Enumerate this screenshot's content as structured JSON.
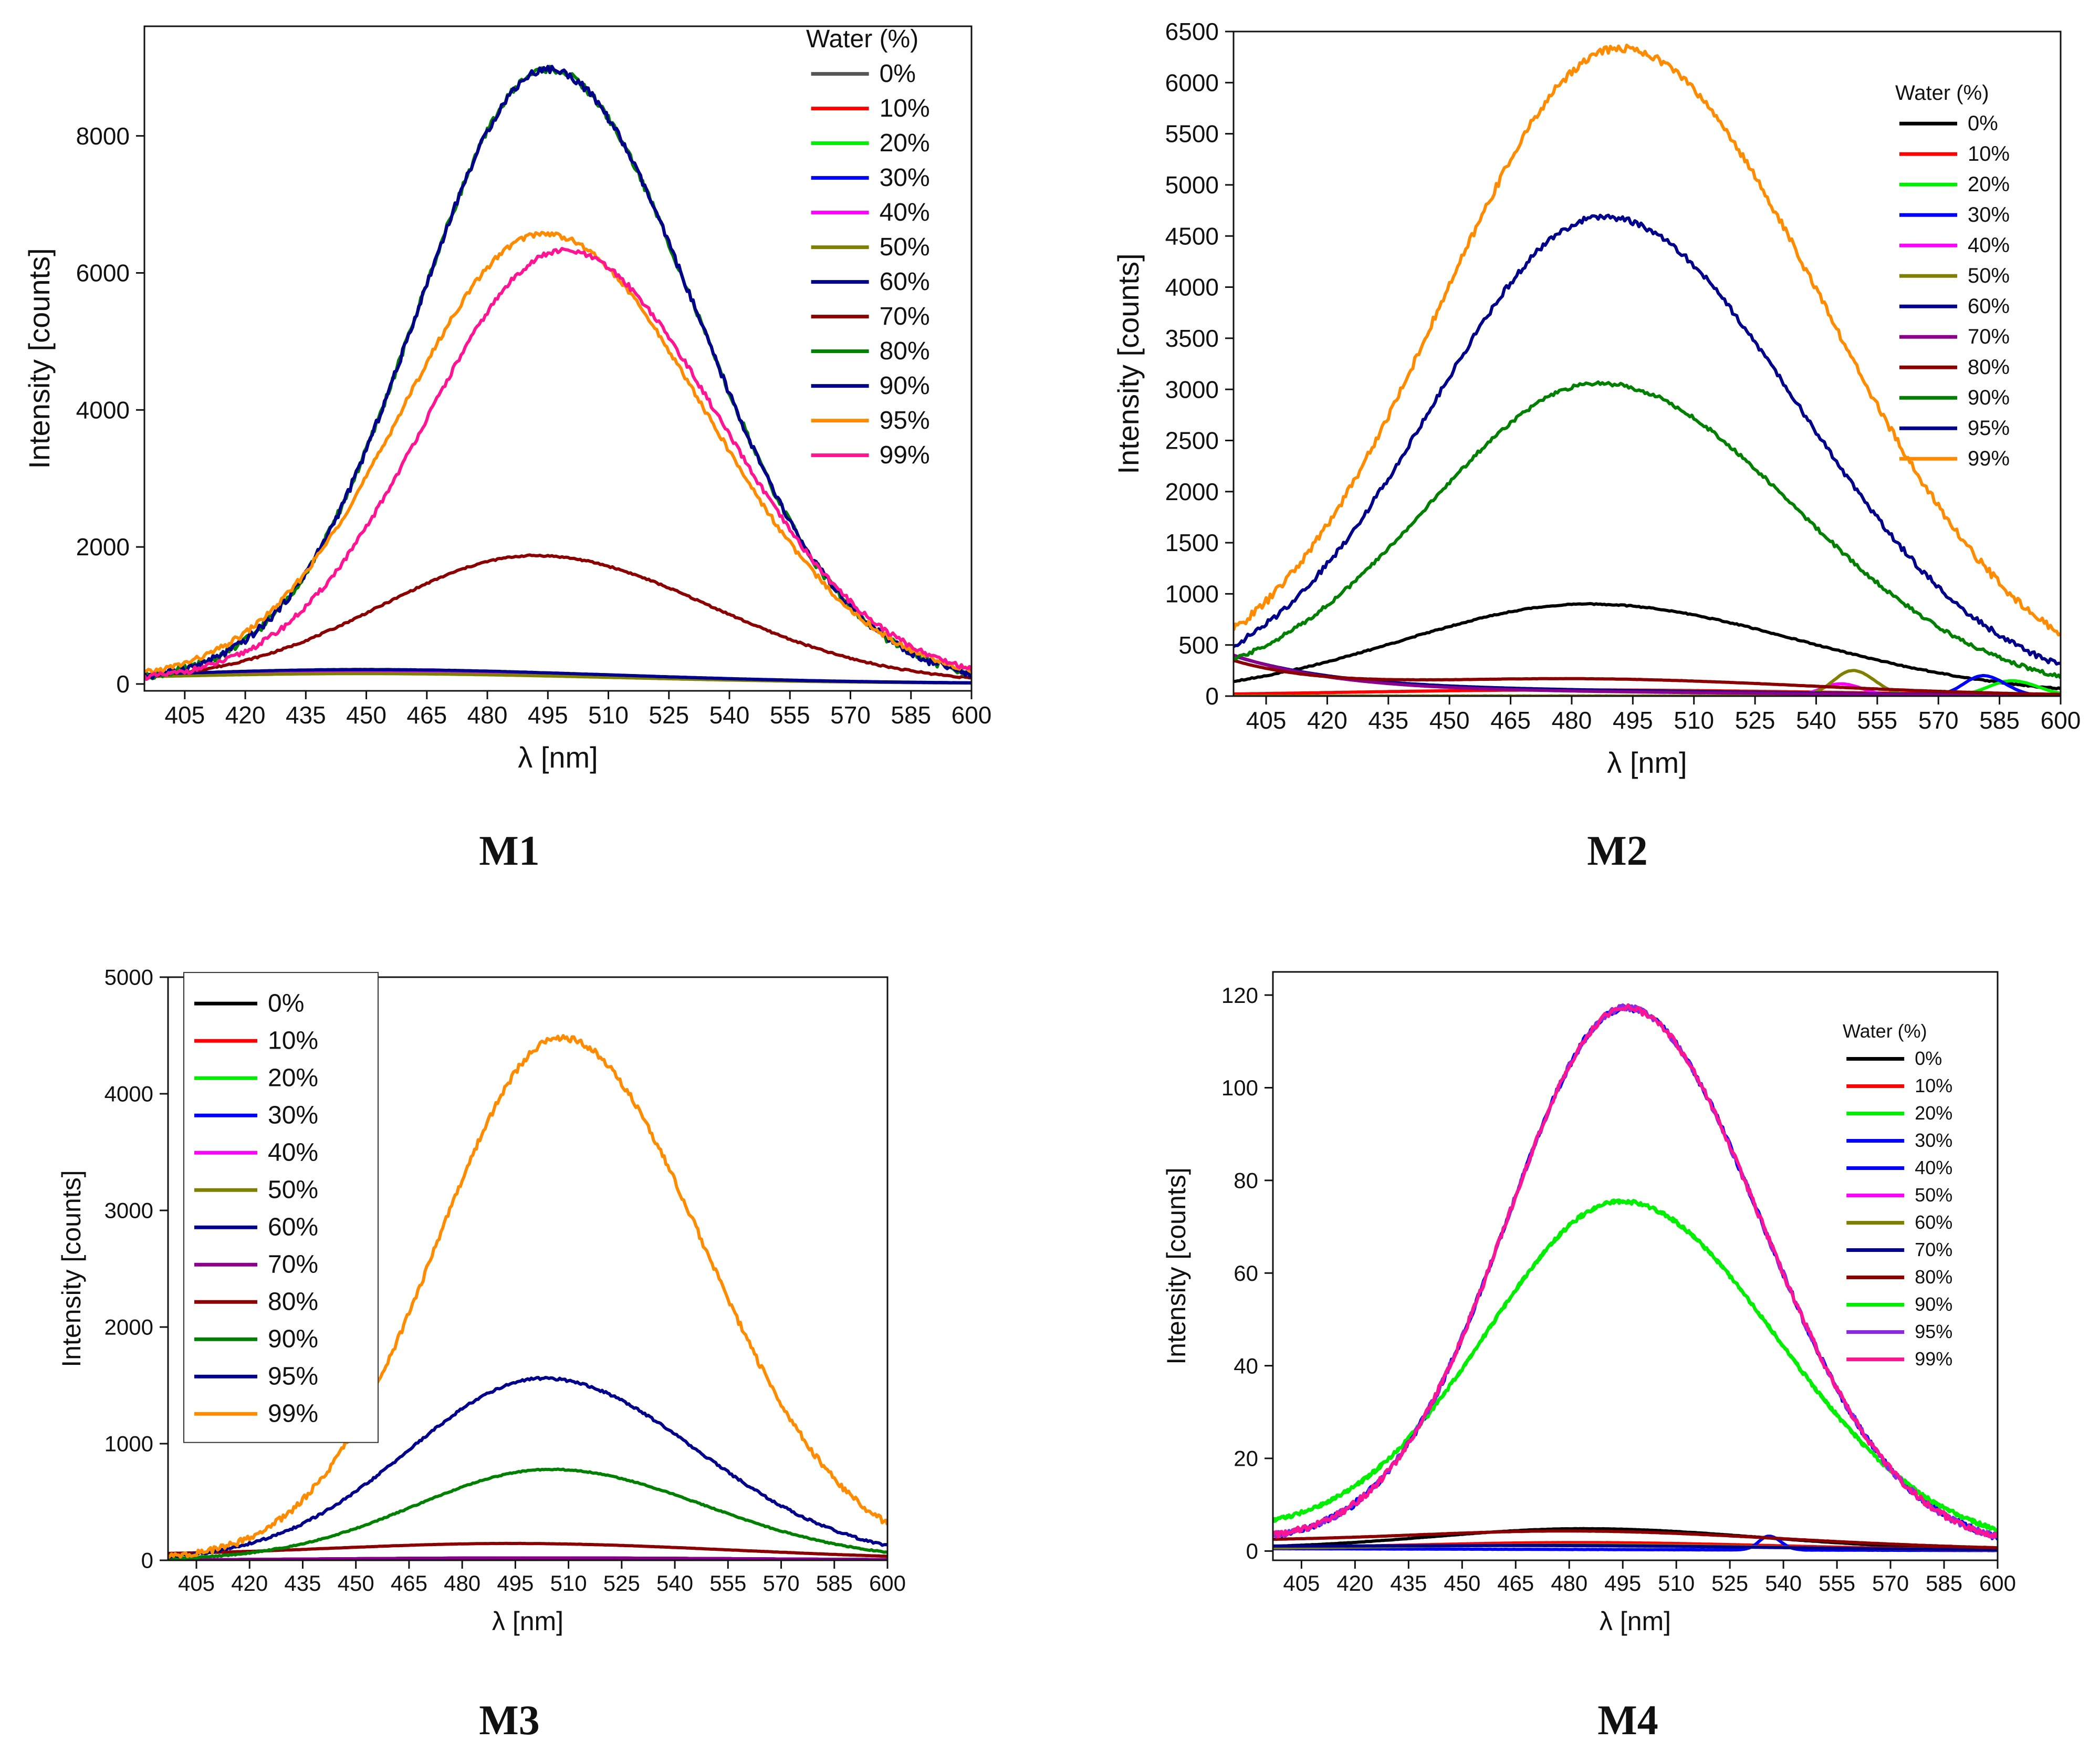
{
  "figure": {
    "captions": [
      "M1",
      "M2",
      "M3",
      "M4"
    ]
  },
  "chart_data": [
    {
      "id": "M1",
      "type": "line",
      "title": "",
      "caption": "M1",
      "xlabel": "λ [nm]",
      "ylabel": "Intensity [counts]",
      "xlim": [
        395,
        600
      ],
      "ylim": [
        -100,
        9600
      ],
      "xticks": [
        405,
        420,
        435,
        450,
        465,
        480,
        495,
        510,
        525,
        540,
        555,
        570,
        585,
        600
      ],
      "yticks": [
        0,
        2000,
        4000,
        6000,
        8000
      ],
      "legend": {
        "title": "Water (%)",
        "placement": "top-right",
        "size": "large"
      },
      "series": [
        {
          "name": "0%",
          "color": "#555555",
          "peak": [
            452,
            160,
            55
          ],
          "base": [
            40,
            0
          ]
        },
        {
          "name": "10%",
          "color": "#ff0000",
          "peak": [
            452,
            150,
            55
          ],
          "base": [
            40,
            0
          ]
        },
        {
          "name": "20%",
          "color": "#00ee00",
          "peak": [
            452,
            140,
            55
          ],
          "base": [
            40,
            0
          ]
        },
        {
          "name": "30%",
          "color": "#0000ff",
          "peak": [
            455,
            170,
            55
          ],
          "base": [
            40,
            0
          ]
        },
        {
          "name": "40%",
          "color": "#ff00ff",
          "peak": [
            452,
            130,
            55
          ],
          "base": [
            40,
            0
          ]
        },
        {
          "name": "50%",
          "color": "#808000",
          "peak": [
            452,
            120,
            55
          ],
          "base": [
            40,
            0
          ]
        },
        {
          "name": "60%",
          "color": "#00008b",
          "peak": [
            452,
            180,
            55
          ],
          "base": [
            40,
            0
          ]
        },
        {
          "name": "70%",
          "color": "#8b0000",
          "peak": [
            492,
            1850,
            40
          ],
          "base": [
            40,
            0
          ]
        },
        {
          "name": "80%",
          "color": "#008000",
          "peak": [
            495,
            8950,
            34
          ],
          "base": [
            40,
            0
          ]
        },
        {
          "name": "90%",
          "color": "#00008b",
          "peak": [
            495,
            8950,
            34
          ],
          "base": [
            40,
            0
          ]
        },
        {
          "name": "95%",
          "color": "#ff8c00",
          "peak": [
            494,
            6550,
            37
          ],
          "base": [
            40,
            0
          ]
        },
        {
          "name": "99%",
          "color": "#ff1493",
          "peak": [
            499,
            6300,
            36
          ],
          "base": [
            40,
            0
          ]
        }
      ]
    },
    {
      "id": "M2",
      "type": "line",
      "title": "",
      "caption": "M2",
      "xlabel": "λ [nm]",
      "ylabel": "Intensity [counts]",
      "xlim": [
        397,
        600
      ],
      "ylim": [
        0,
        6500
      ],
      "xticks": [
        405,
        420,
        435,
        450,
        465,
        480,
        495,
        510,
        525,
        540,
        555,
        570,
        585,
        600
      ],
      "yticks": [
        0,
        500,
        1000,
        1500,
        2000,
        2500,
        3000,
        3500,
        4000,
        4500,
        5000,
        5500,
        6000,
        6500
      ],
      "legend": {
        "title": "Water (%)",
        "placement": "top-right",
        "size": "small"
      },
      "series": [
        {
          "name": "0%",
          "color": "#000000",
          "peak": [
            484,
            900,
            48
          ],
          "base": [
            0,
            0
          ]
        },
        {
          "name": "10%",
          "color": "#ff0000",
          "peak": [
            480,
            60,
            60
          ],
          "base": [
            0,
            0
          ]
        },
        {
          "name": "20%",
          "color": "#00ee00",
          "peak": [
            588,
            150,
            6
          ],
          "base": [
            0,
            0
          ]
        },
        {
          "name": "30%",
          "color": "#0000ff",
          "peak": [
            581,
            200,
            5
          ],
          "base": [
            0,
            0
          ]
        },
        {
          "name": "40%",
          "color": "#ff00ff",
          "peak": [
            546,
            120,
            5
          ],
          "base": [
            0,
            0
          ]
        },
        {
          "name": "50%",
          "color": "#808000",
          "peak": [
            549,
            250,
            5
          ],
          "base": [
            0,
            0
          ]
        },
        {
          "name": "60%",
          "color": "#00008b",
          "peak": [
            480,
            40,
            60
          ],
          "base": [
            380,
            30
          ]
        },
        {
          "name": "70%",
          "color": "#8b008b",
          "peak": [
            480,
            30,
            60
          ],
          "base": [
            390,
            28
          ]
        },
        {
          "name": "80%",
          "color": "#8b0000",
          "peak": [
            485,
            160,
            50
          ],
          "base": [
            320,
            25
          ]
        },
        {
          "name": "90%",
          "color": "#008000",
          "peak": [
            487,
            3020,
            44
          ],
          "base": [
            60,
            0
          ]
        },
        {
          "name": "95%",
          "color": "#00008b",
          "peak": [
            488,
            4650,
            44
          ],
          "base": [
            60,
            0
          ]
        },
        {
          "name": "99%",
          "color": "#ff8c00",
          "peak": [
            492,
            6300,
            46
          ],
          "base": [
            60,
            0
          ]
        }
      ]
    },
    {
      "id": "M3",
      "type": "line",
      "title": "",
      "caption": "M3",
      "xlabel": "λ [nm]",
      "ylabel": "Intensity [counts]",
      "xlim": [
        397,
        600
      ],
      "ylim": [
        0,
        5000
      ],
      "xticks": [
        405,
        420,
        435,
        450,
        465,
        480,
        495,
        510,
        525,
        540,
        555,
        570,
        585,
        600
      ],
      "yticks": [
        0,
        1000,
        2000,
        3000,
        4000,
        5000
      ],
      "legend": {
        "title": "",
        "placement": "top-left",
        "size": "large"
      },
      "series": [
        {
          "name": "0%",
          "color": "#000000",
          "peak": [
            500,
            20,
            60
          ],
          "base": [
            0,
            0
          ]
        },
        {
          "name": "10%",
          "color": "#ff0000",
          "peak": [
            500,
            20,
            60
          ],
          "base": [
            0,
            0
          ]
        },
        {
          "name": "20%",
          "color": "#00ee00",
          "peak": [
            500,
            20,
            60
          ],
          "base": [
            0,
            0
          ]
        },
        {
          "name": "30%",
          "color": "#0000ff",
          "peak": [
            500,
            20,
            60
          ],
          "base": [
            0,
            0
          ]
        },
        {
          "name": "40%",
          "color": "#ff00ff",
          "peak": [
            500,
            20,
            60
          ],
          "base": [
            0,
            0
          ]
        },
        {
          "name": "50%",
          "color": "#808000",
          "peak": [
            500,
            20,
            60
          ],
          "base": [
            0,
            0
          ]
        },
        {
          "name": "60%",
          "color": "#00008b",
          "peak": [
            500,
            20,
            60
          ],
          "base": [
            0,
            0
          ]
        },
        {
          "name": "70%",
          "color": "#8b008b",
          "peak": [
            500,
            20,
            60
          ],
          "base": [
            0,
            0
          ]
        },
        {
          "name": "80%",
          "color": "#8b0000",
          "peak": [
            497,
            120,
            55
          ],
          "base": [
            40,
            0
          ]
        },
        {
          "name": "90%",
          "color": "#008000",
          "peak": [
            505,
            780,
            40
          ],
          "base": [
            0,
            0
          ]
        },
        {
          "name": "95%",
          "color": "#00008b",
          "peak": [
            503,
            1560,
            40
          ],
          "base": [
            0,
            0
          ]
        },
        {
          "name": "99%",
          "color": "#ff8c00",
          "peak": [
            508,
            4480,
            37
          ],
          "base": [
            0,
            0
          ]
        }
      ]
    },
    {
      "id": "M4",
      "type": "line",
      "title": "",
      "caption": "M4",
      "xlabel": "λ [nm]",
      "ylabel": "Intensity [counts]",
      "xlim": [
        397,
        600
      ],
      "ylim": [
        -2,
        125
      ],
      "xticks": [
        405,
        420,
        435,
        450,
        465,
        480,
        495,
        510,
        525,
        540,
        555,
        570,
        585,
        600
      ],
      "yticks": [
        0,
        20,
        40,
        60,
        80,
        100,
        120
      ],
      "legend": {
        "title": "Water (%)",
        "placement": "top-right",
        "size": "small"
      },
      "series": [
        {
          "name": "0%",
          "color": "#000000",
          "peak": [
            485,
            4.5,
            45
          ],
          "base": [
            0.5,
            0
          ]
        },
        {
          "name": "10%",
          "color": "#ff0000",
          "peak": [
            485,
            1.5,
            50
          ],
          "base": [
            0.5,
            0
          ]
        },
        {
          "name": "20%",
          "color": "#00ee00",
          "peak": [
            495,
            73,
            40
          ],
          "base": [
            4,
            0
          ]
        },
        {
          "name": "30%",
          "color": "#0000ff",
          "peak": [
            496,
            116,
            35
          ],
          "base": [
            2,
            0
          ]
        },
        {
          "name": "40%",
          "color": "#0000ff",
          "peak": [
            536,
            3,
            3
          ],
          "base": [
            0.5,
            0
          ]
        },
        {
          "name": "50%",
          "color": "#ff00ff",
          "peak": [
            485,
            1,
            50
          ],
          "base": [
            0.5,
            0
          ]
        },
        {
          "name": "60%",
          "color": "#808000",
          "peak": [
            485,
            1,
            50
          ],
          "base": [
            0.5,
            0
          ]
        },
        {
          "name": "70%",
          "color": "#00008b",
          "peak": [
            485,
            0.5,
            50
          ],
          "base": [
            1,
            0
          ]
        },
        {
          "name": "80%",
          "color": "#8b0000",
          "peak": [
            485,
            3,
            50
          ],
          "base": [
            2,
            0
          ]
        },
        {
          "name": "90%",
          "color": "#00ee00",
          "peak": [
            495,
            73,
            40
          ],
          "base": [
            4,
            0
          ]
        },
        {
          "name": "95%",
          "color": "#8a2be2",
          "peak": [
            496,
            116,
            35
          ],
          "base": [
            2,
            0
          ]
        },
        {
          "name": "99%",
          "color": "#ff1493",
          "peak": [
            496,
            116,
            35
          ],
          "base": [
            2,
            0
          ]
        }
      ]
    }
  ]
}
